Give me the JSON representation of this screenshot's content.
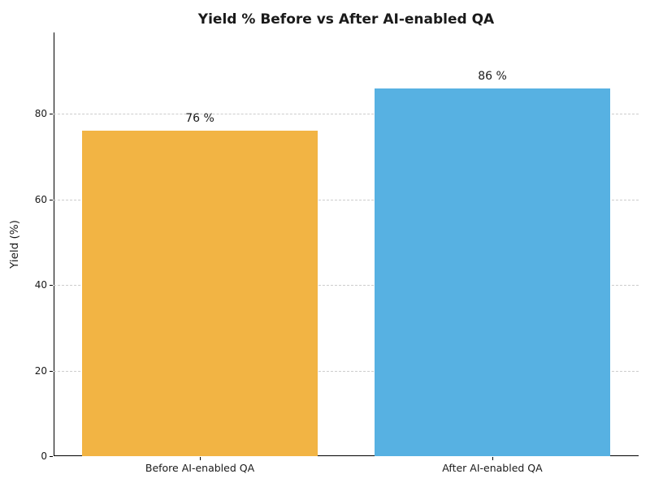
{
  "chart_data": {
    "type": "bar",
    "title": "Yield % Before vs After AI-enabled QA",
    "categories": [
      "Before AI-enabled QA",
      "After AI-enabled QA"
    ],
    "values": [
      76,
      86
    ],
    "value_labels": [
      "76 %",
      "86 %"
    ],
    "bar_colors": [
      "#F2B444",
      "#57B1E2"
    ],
    "xlabel": "",
    "ylabel": "Yield (%)",
    "ylim": [
      0,
      99
    ],
    "yticks": [
      0,
      20,
      40,
      60,
      80
    ],
    "grid": "horizontal-dashed",
    "gridline_color": "#cccccc",
    "legend": "none",
    "title_color": "#1a1a1a",
    "axis_color": "#000000"
  }
}
